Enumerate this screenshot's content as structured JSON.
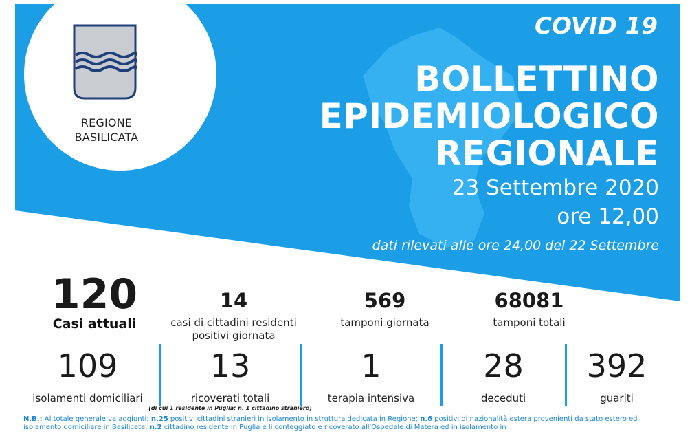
{
  "header": {
    "org": [
      "REGIONE",
      "BASILICATA"
    ],
    "tag": "COVID 19",
    "title": [
      "BOLLETTINO",
      "EPIDEMIOLOGICO",
      "REGIONALE"
    ],
    "date": "23 Settembre 2020",
    "time": "ore 12,00",
    "source_note": "dati rilevati alle ore 24,00 del 22 Settembre"
  },
  "stats_top": {
    "active_cases": {
      "value": "120",
      "label": "Casi attuali"
    },
    "resident_positive": {
      "value": "14",
      "label": [
        "casi di cittadini residenti",
        "positivi giornata"
      ]
    },
    "daily_swabs": {
      "value": "569",
      "label": "tamponi giornata"
    },
    "total_swabs": {
      "value": "68081",
      "label": "tamponi totali"
    }
  },
  "stats_bottom": [
    {
      "value": "109",
      "label": "isolamenti domiciliari"
    },
    {
      "value": "13",
      "label": "ricoverati totali",
      "sub": "(di cui 1 residente in Puglia; n. 1 cittadino straniero)"
    },
    {
      "value": "1",
      "label": "terapia intensiva"
    },
    {
      "value": "28",
      "label": "deceduti"
    },
    {
      "value": "392",
      "label": "guariti"
    }
  ],
  "note": {
    "prefix": "N.B.:",
    "t1": " Al totale generale va aggiunti: ",
    "b1": "n.25",
    "t2": " positivi cittadini stranieri in isolamento in struttura dedicata in Regione; ",
    "b2": "n.6",
    "t3": " positivi di nazionalità estera provenienti da stato estero ed isolamento domiciliare in Basilicata; ",
    "b3": "n.2",
    "t4": " cittadino residente in Puglia e li conteggiato e ricoverato all'Ospedale di Matera ed in isolamento in"
  },
  "colors": {
    "brand_blue": "#1b9ee6",
    "map_blue": "#3ab4f2"
  }
}
